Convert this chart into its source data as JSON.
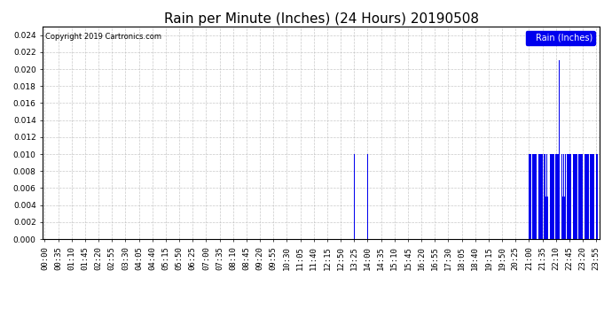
{
  "title": "Rain per Minute (Inches) (24 Hours) 20190508",
  "copyright_text": "Copyright 2019 Cartronics.com",
  "legend_label": "Rain (Inches)",
  "ylim": [
    0,
    0.025
  ],
  "yticks": [
    0.0,
    0.002,
    0.004,
    0.006,
    0.008,
    0.01,
    0.012,
    0.014,
    0.016,
    0.018,
    0.02,
    0.022,
    0.024
  ],
  "bar_color": "#0000ee",
  "background_color": "#ffffff",
  "grid_color": "#bbbbbb",
  "title_fontsize": 11,
  "axis_fontsize": 6.5,
  "rain_events": [
    {
      "minute": 805,
      "value": 0.01
    },
    {
      "minute": 840,
      "value": 0.01
    },
    {
      "minute": 1260,
      "value": 0.01
    },
    {
      "minute": 1262,
      "value": 0.01
    },
    {
      "minute": 1264,
      "value": 0.01
    },
    {
      "minute": 1266,
      "value": 0.01
    },
    {
      "minute": 1268,
      "value": 0.01
    },
    {
      "minute": 1270,
      "value": 0.01
    },
    {
      "minute": 1272,
      "value": 0.01
    },
    {
      "minute": 1274,
      "value": 0.01
    },
    {
      "minute": 1276,
      "value": 0.01
    },
    {
      "minute": 1278,
      "value": 0.01
    },
    {
      "minute": 1280,
      "value": 0.01
    },
    {
      "minute": 1282,
      "value": 0.01
    },
    {
      "minute": 1284,
      "value": 0.01
    },
    {
      "minute": 1286,
      "value": 0.01
    },
    {
      "minute": 1288,
      "value": 0.01
    },
    {
      "minute": 1290,
      "value": 0.01
    },
    {
      "minute": 1292,
      "value": 0.01
    },
    {
      "minute": 1294,
      "value": 0.01
    },
    {
      "minute": 1296,
      "value": 0.01
    },
    {
      "minute": 1298,
      "value": 0.01
    },
    {
      "minute": 1300,
      "value": 0.01
    },
    {
      "minute": 1302,
      "value": 0.01
    },
    {
      "minute": 1304,
      "value": 0.005
    },
    {
      "minute": 1306,
      "value": 0.01
    },
    {
      "minute": 1308,
      "value": 0.005
    },
    {
      "minute": 1310,
      "value": 0.01
    },
    {
      "minute": 1312,
      "value": 0.01
    },
    {
      "minute": 1314,
      "value": 0.01
    },
    {
      "minute": 1316,
      "value": 0.01
    },
    {
      "minute": 1318,
      "value": 0.01
    },
    {
      "minute": 1320,
      "value": 0.01
    },
    {
      "minute": 1322,
      "value": 0.01
    },
    {
      "minute": 1324,
      "value": 0.01
    },
    {
      "minute": 1326,
      "value": 0.01
    },
    {
      "minute": 1328,
      "value": 0.01
    },
    {
      "minute": 1330,
      "value": 0.01
    },
    {
      "minute": 1332,
      "value": 0.01
    },
    {
      "minute": 1334,
      "value": 0.01
    },
    {
      "minute": 1336,
      "value": 0.01
    },
    {
      "minute": 1338,
      "value": 0.021
    },
    {
      "minute": 1340,
      "value": 0.01
    },
    {
      "minute": 1342,
      "value": 0.01
    },
    {
      "minute": 1344,
      "value": 0.01
    },
    {
      "minute": 1346,
      "value": 0.01
    },
    {
      "minute": 1348,
      "value": 0.005
    },
    {
      "minute": 1350,
      "value": 0.01
    },
    {
      "minute": 1352,
      "value": 0.005
    },
    {
      "minute": 1354,
      "value": 0.01
    },
    {
      "minute": 1356,
      "value": 0.01
    },
    {
      "minute": 1358,
      "value": 0.01
    },
    {
      "minute": 1360,
      "value": 0.01
    },
    {
      "minute": 1362,
      "value": 0.01
    },
    {
      "minute": 1364,
      "value": 0.01
    },
    {
      "minute": 1366,
      "value": 0.01
    },
    {
      "minute": 1368,
      "value": 0.01
    },
    {
      "minute": 1370,
      "value": 0.01
    },
    {
      "minute": 1372,
      "value": 0.01
    },
    {
      "minute": 1374,
      "value": 0.01
    },
    {
      "minute": 1376,
      "value": 0.01
    },
    {
      "minute": 1378,
      "value": 0.01
    },
    {
      "minute": 1380,
      "value": 0.01
    },
    {
      "minute": 1382,
      "value": 0.01
    },
    {
      "minute": 1384,
      "value": 0.01
    },
    {
      "minute": 1386,
      "value": 0.01
    },
    {
      "minute": 1388,
      "value": 0.01
    },
    {
      "minute": 1390,
      "value": 0.01
    },
    {
      "minute": 1392,
      "value": 0.01
    },
    {
      "minute": 1394,
      "value": 0.01
    },
    {
      "minute": 1396,
      "value": 0.01
    },
    {
      "minute": 1398,
      "value": 0.01
    },
    {
      "minute": 1400,
      "value": 0.01
    },
    {
      "minute": 1402,
      "value": 0.01
    },
    {
      "minute": 1404,
      "value": 0.01
    },
    {
      "minute": 1406,
      "value": 0.01
    },
    {
      "minute": 1408,
      "value": 0.01
    },
    {
      "minute": 1410,
      "value": 0.01
    },
    {
      "minute": 1412,
      "value": 0.01
    },
    {
      "minute": 1414,
      "value": 0.01
    },
    {
      "minute": 1416,
      "value": 0.01
    },
    {
      "minute": 1418,
      "value": 0.01
    },
    {
      "minute": 1420,
      "value": 0.01
    },
    {
      "minute": 1422,
      "value": 0.01
    },
    {
      "minute": 1424,
      "value": 0.01
    },
    {
      "minute": 1426,
      "value": 0.01
    },
    {
      "minute": 1428,
      "value": 0.01
    },
    {
      "minute": 1430,
      "value": 0.01
    },
    {
      "minute": 1432,
      "value": 0.01
    },
    {
      "minute": 1434,
      "value": 0.01
    },
    {
      "minute": 1436,
      "value": 0.01
    },
    {
      "minute": 1438,
      "value": 0.01
    }
  ]
}
